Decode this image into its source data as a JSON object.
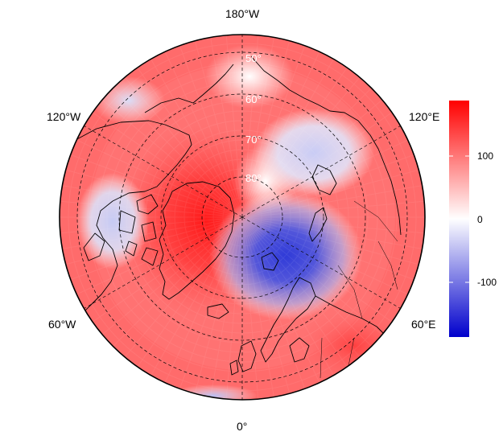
{
  "map": {
    "projection": "north-polar-stereographic",
    "longitude_labels": {
      "top": "180°W",
      "upper_left": "120°W",
      "upper_right": "120°E",
      "lower_left": "60°W",
      "lower_right": "60°E",
      "bottom": "0°"
    },
    "latitude_labels": [
      "50°",
      "60°",
      "70°",
      "80°"
    ],
    "graticule": "dashed",
    "coastlines": true
  },
  "colorbar": {
    "ticks": [
      "100",
      "0",
      "-100"
    ],
    "colors": {
      "high": "#ff0000",
      "mid": "#ffffff",
      "low": "#0000cc"
    }
  },
  "features": [
    {
      "name": "greenland-high",
      "sign": "positive"
    },
    {
      "name": "scandinavia-low",
      "sign": "negative"
    },
    {
      "name": "siberia-low",
      "sign": "negative"
    },
    {
      "name": "canada-low",
      "sign": "negative"
    }
  ]
}
